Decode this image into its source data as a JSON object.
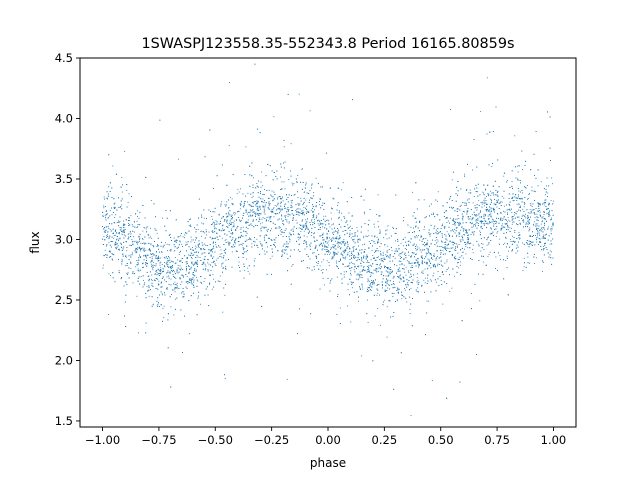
{
  "chart_data": {
    "type": "scatter",
    "title": "1SWASPJ123558.35-552343.8 Period 16165.80859s",
    "xlabel": "phase",
    "ylabel": "flux",
    "xlim": [
      -1.1,
      1.1
    ],
    "ylim": [
      1.45,
      4.5
    ],
    "xticks": [
      {
        "value": -1.0,
        "label": "−1.00"
      },
      {
        "value": -0.75,
        "label": "−0.75"
      },
      {
        "value": -0.5,
        "label": "−0.50"
      },
      {
        "value": -0.25,
        "label": "−0.25"
      },
      {
        "value": 0.0,
        "label": "0.00"
      },
      {
        "value": 0.25,
        "label": "0.25"
      },
      {
        "value": 0.5,
        "label": "0.50"
      },
      {
        "value": 0.75,
        "label": "0.75"
      },
      {
        "value": 1.0,
        "label": "1.00"
      }
    ],
    "yticks": [
      {
        "value": 1.5,
        "label": "1.5"
      },
      {
        "value": 2.0,
        "label": "2.0"
      },
      {
        "value": 2.5,
        "label": "2.5"
      },
      {
        "value": 3.0,
        "label": "3.0"
      },
      {
        "value": 3.5,
        "label": "3.5"
      },
      {
        "value": 4.0,
        "label": "4.0"
      },
      {
        "value": 4.5,
        "label": "4.5"
      }
    ],
    "grid": false,
    "legend": "none",
    "marker_color": "#1f77b4",
    "series": [
      {
        "x": [
          -1.0,
          -0.95,
          -0.9,
          -0.85,
          -0.8,
          -0.75,
          -0.7,
          -0.65,
          -0.6,
          -0.55,
          -0.5,
          -0.45,
          -0.4,
          -0.35,
          -0.3,
          -0.25,
          -0.2,
          -0.15,
          -0.1,
          -0.05,
          0.0,
          0.05,
          0.1,
          0.15,
          0.2,
          0.25,
          0.3,
          0.35,
          0.4,
          0.45,
          0.5,
          0.55,
          0.6,
          0.65,
          0.7,
          0.75,
          0.8,
          0.85,
          0.9,
          0.95,
          1.0
        ],
        "y": [
          3.1,
          3.05,
          2.98,
          2.9,
          2.83,
          2.78,
          2.76,
          2.78,
          2.83,
          2.9,
          2.97,
          3.04,
          3.1,
          3.15,
          3.18,
          3.2,
          3.2,
          3.18,
          3.14,
          3.08,
          3.02,
          2.95,
          2.88,
          2.82,
          2.78,
          2.76,
          2.76,
          2.79,
          2.84,
          2.9,
          2.97,
          3.04,
          3.1,
          3.15,
          3.18,
          3.2,
          3.2,
          3.18,
          3.15,
          3.12,
          3.1
        ],
        "scatter_sd": 0.17
      }
    ]
  }
}
